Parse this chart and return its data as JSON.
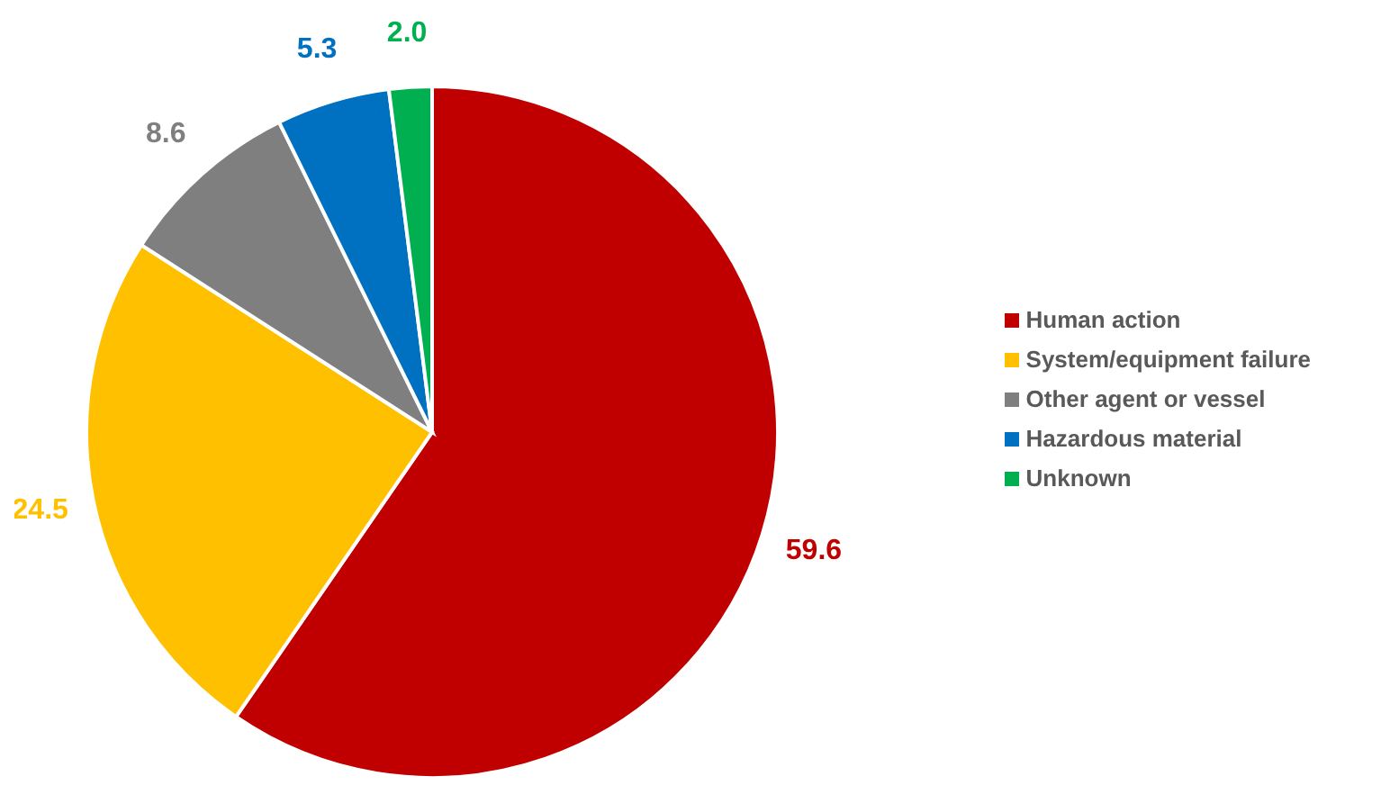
{
  "chart_data": {
    "type": "pie",
    "categories": [
      "Human action",
      "System/equipment failure",
      "Other agent or vessel",
      "Hazardous material",
      "Unknown"
    ],
    "values": [
      59.6,
      24.5,
      8.6,
      5.3,
      2.0
    ],
    "colors": [
      "#c00000",
      "#ffc000",
      "#7f7f7f",
      "#0070c0",
      "#00b050"
    ],
    "value_labels": [
      "59.6",
      "24.5",
      "8.6",
      "5.3",
      "2.0"
    ],
    "legend": "right"
  }
}
